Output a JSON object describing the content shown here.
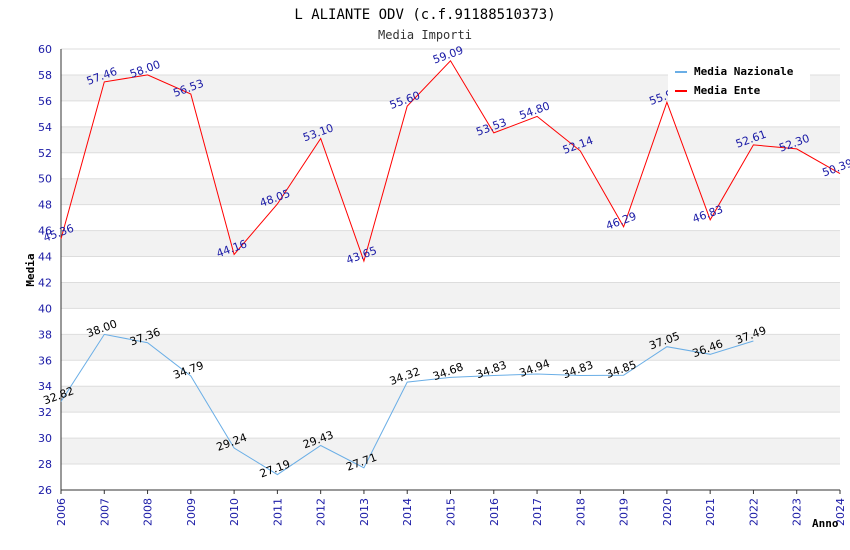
{
  "chart_data": {
    "type": "line",
    "title": "L ALIANTE ODV (c.f.91188510373)",
    "subtitle": "Media Importi",
    "xlabel": "Anno",
    "ylabel": "Media",
    "x": [
      "2006",
      "2007",
      "2008",
      "2009",
      "2010",
      "2011",
      "2012",
      "2013",
      "2014",
      "2015",
      "2016",
      "2017",
      "2018",
      "2019",
      "2020",
      "2021",
      "2022",
      "2023",
      "2024"
    ],
    "ylim": [
      26,
      60
    ],
    "ystep": 2,
    "grid": "horizontal-banded",
    "legend_position": "top-right",
    "series": [
      {
        "name": "Media Nazionale",
        "color": "#6aaee6",
        "label_color": "#000000",
        "values": [
          32.82,
          38.0,
          37.36,
          34.79,
          29.24,
          27.19,
          29.43,
          27.71,
          34.32,
          34.68,
          34.83,
          34.94,
          34.83,
          34.85,
          37.05,
          36.46,
          37.49,
          null,
          null
        ]
      },
      {
        "name": "Media Ente",
        "color": "#ff0000",
        "label_color": "#1a1aa6",
        "values": [
          45.36,
          57.46,
          58.0,
          56.53,
          44.16,
          48.05,
          53.1,
          43.65,
          55.6,
          59.09,
          53.53,
          54.8,
          52.14,
          46.29,
          55.9,
          46.83,
          52.61,
          52.3,
          50.39
        ]
      }
    ]
  }
}
